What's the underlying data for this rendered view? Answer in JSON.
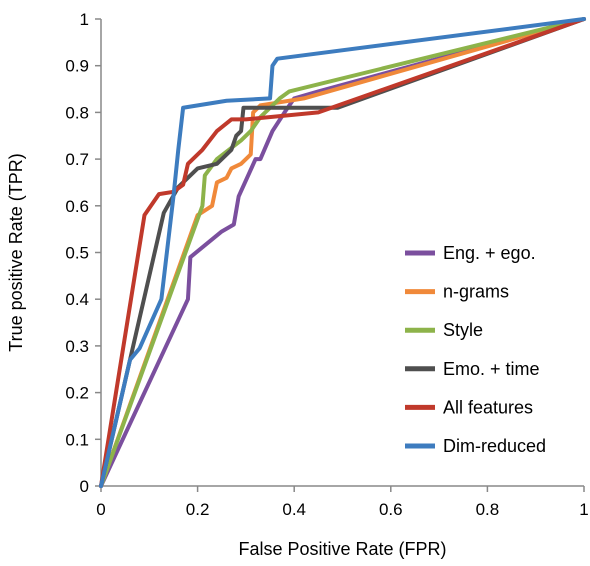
{
  "chart_data": {
    "type": "line",
    "xlabel": "False Positive Rate (FPR)",
    "ylabel": "True positive Rate (TPR)",
    "xlim": [
      0,
      1
    ],
    "ylim": [
      0,
      1
    ],
    "x_ticks": [
      0,
      0.2,
      0.4,
      0.6,
      0.8,
      1
    ],
    "x_tick_labels": [
      "0",
      "0.2",
      "0.4",
      "0.6",
      "0.8",
      "1"
    ],
    "y_ticks": [
      0,
      0.1,
      0.2,
      0.3,
      0.4,
      0.5,
      0.6,
      0.7,
      0.8,
      0.9,
      1
    ],
    "y_tick_labels": [
      "0",
      "0.1",
      "0.2",
      "0.3",
      "0.4",
      "0.5",
      "0.6",
      "0.7",
      "0.8",
      "0.9",
      "1"
    ],
    "grid": false,
    "legend_position": "bottom-right",
    "series": [
      {
        "name": "Eng. + ego.",
        "color": "#7B4F9E",
        "points": [
          [
            0,
            0
          ],
          [
            0.18,
            0.4
          ],
          [
            0.185,
            0.49
          ],
          [
            0.25,
            0.545
          ],
          [
            0.275,
            0.56
          ],
          [
            0.285,
            0.62
          ],
          [
            0.32,
            0.7
          ],
          [
            0.33,
            0.7
          ],
          [
            0.355,
            0.76
          ],
          [
            0.38,
            0.8
          ],
          [
            0.4,
            0.83
          ],
          [
            0.45,
            0.845
          ],
          [
            1.0,
            1.0
          ]
        ]
      },
      {
        "name": "n-grams",
        "color": "#F0893A",
        "points": [
          [
            0,
            0
          ],
          [
            0.2,
            0.58
          ],
          [
            0.23,
            0.6
          ],
          [
            0.24,
            0.65
          ],
          [
            0.26,
            0.66
          ],
          [
            0.27,
            0.68
          ],
          [
            0.29,
            0.69
          ],
          [
            0.31,
            0.71
          ],
          [
            0.315,
            0.8
          ],
          [
            0.33,
            0.815
          ],
          [
            0.36,
            0.82
          ],
          [
            0.42,
            0.83
          ],
          [
            1.0,
            1.0
          ]
        ]
      },
      {
        "name": "Style",
        "color": "#8DB34A",
        "points": [
          [
            0,
            0
          ],
          [
            0.21,
            0.6
          ],
          [
            0.215,
            0.665
          ],
          [
            0.24,
            0.7
          ],
          [
            0.29,
            0.74
          ],
          [
            0.31,
            0.76
          ],
          [
            0.33,
            0.79
          ],
          [
            0.37,
            0.83
          ],
          [
            0.39,
            0.845
          ],
          [
            1.0,
            1.0
          ]
        ]
      },
      {
        "name": "Emo. + time",
        "color": "#4F4F4F",
        "points": [
          [
            0,
            0
          ],
          [
            0.13,
            0.585
          ],
          [
            0.16,
            0.64
          ],
          [
            0.2,
            0.68
          ],
          [
            0.24,
            0.69
          ],
          [
            0.27,
            0.72
          ],
          [
            0.28,
            0.75
          ],
          [
            0.29,
            0.76
          ],
          [
            0.295,
            0.81
          ],
          [
            0.49,
            0.81
          ],
          [
            1.0,
            1.0
          ]
        ]
      },
      {
        "name": "All features",
        "color": "#C0392B",
        "points": [
          [
            0,
            0
          ],
          [
            0.09,
            0.58
          ],
          [
            0.12,
            0.625
          ],
          [
            0.15,
            0.63
          ],
          [
            0.17,
            0.645
          ],
          [
            0.18,
            0.69
          ],
          [
            0.21,
            0.72
          ],
          [
            0.24,
            0.76
          ],
          [
            0.27,
            0.785
          ],
          [
            0.3,
            0.785
          ],
          [
            0.45,
            0.8
          ],
          [
            1.0,
            1.0
          ]
        ]
      },
      {
        "name": "Dim-reduced",
        "color": "#3D7CBF",
        "points": [
          [
            0,
            0
          ],
          [
            0.06,
            0.27
          ],
          [
            0.08,
            0.295
          ],
          [
            0.125,
            0.4
          ],
          [
            0.15,
            0.62
          ],
          [
            0.16,
            0.72
          ],
          [
            0.17,
            0.81
          ],
          [
            0.26,
            0.825
          ],
          [
            0.35,
            0.83
          ],
          [
            0.355,
            0.9
          ],
          [
            0.365,
            0.915
          ],
          [
            1.0,
            1.0
          ]
        ]
      }
    ]
  }
}
